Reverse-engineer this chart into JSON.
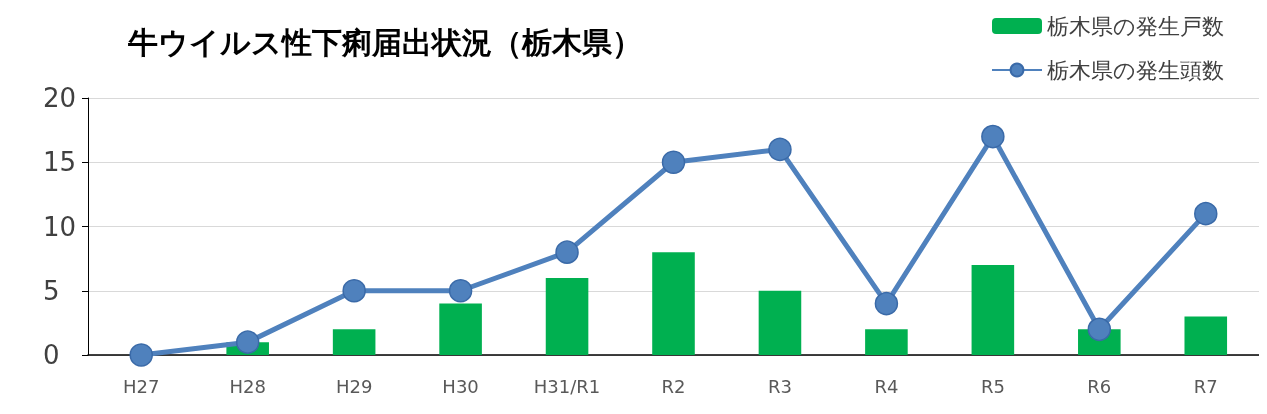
{
  "chart_data": {
    "type": "bar",
    "title": "牛ウイルス性下痢届出状況（栃木県）",
    "categories": [
      "H27",
      "H28",
      "H29",
      "H30",
      "H31/R1",
      "R2",
      "R3",
      "R4",
      "R5",
      "R6",
      "R7"
    ],
    "series": [
      {
        "name": "栃木県の発生戸数",
        "color": "#00b050",
        "values": [
          0,
          1,
          2,
          4,
          6,
          8,
          5,
          2,
          7,
          2,
          3
        ]
      },
      {
        "name": "栃木県の発生頭数",
        "type": "line",
        "color": "#4f81bd",
        "values": [
          0,
          1,
          5,
          5,
          8,
          15,
          16,
          4,
          17,
          2,
          11
        ]
      }
    ],
    "ylim": [
      0,
      20
    ],
    "yticks": [
      0,
      5,
      10,
      15,
      20
    ],
    "grid": "y",
    "legend": "top right",
    "marker": "circle",
    "line_style": "solid"
  }
}
